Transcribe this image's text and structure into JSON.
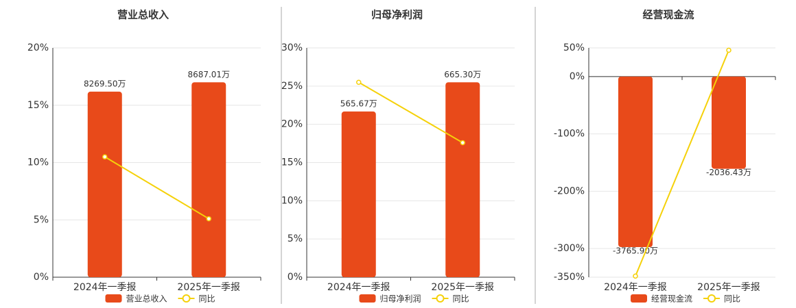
{
  "chart_data": [
    {
      "type": "bar",
      "title": "营业总收入",
      "categories": [
        "2024年一季报",
        "2025年一季报"
      ],
      "series": [
        {
          "name": "营业总收入",
          "type": "bar",
          "color": "#e84a1a",
          "values": [
            8269.5,
            8687.01
          ],
          "value_labels": [
            "8269.50万",
            "8687.01万"
          ]
        },
        {
          "name": "同比",
          "type": "line",
          "color": "#f5d10a",
          "values": [
            10.5,
            5.1
          ]
        }
      ],
      "ylim": [
        0,
        20
      ],
      "yticks": [
        {
          "value": 0,
          "label": "0%"
        },
        {
          "value": 5,
          "label": "5%"
        },
        {
          "value": 10,
          "label": "10%"
        },
        {
          "value": 15,
          "label": "15%"
        },
        {
          "value": 20,
          "label": "20%"
        }
      ],
      "grid": true
    },
    {
      "type": "bar",
      "title": "归母净利润",
      "categories": [
        "2024年一季报",
        "2025年一季报"
      ],
      "series": [
        {
          "name": "归母净利润",
          "type": "bar",
          "color": "#e84a1a",
          "values": [
            565.67,
            665.3
          ],
          "value_labels": [
            "565.67万",
            "665.30万"
          ]
        },
        {
          "name": "同比",
          "type": "line",
          "color": "#f5d10a",
          "values": [
            25.5,
            17.6
          ]
        }
      ],
      "ylim": [
        0,
        30
      ],
      "yticks": [
        {
          "value": 0,
          "label": "0%"
        },
        {
          "value": 5,
          "label": "5%"
        },
        {
          "value": 10,
          "label": "10%"
        },
        {
          "value": 15,
          "label": "15%"
        },
        {
          "value": 20,
          "label": "20%"
        },
        {
          "value": 25,
          "label": "25%"
        },
        {
          "value": 30,
          "label": "30%"
        }
      ],
      "grid": true
    },
    {
      "type": "bar",
      "title": "经营现金流",
      "categories": [
        "2024年一季报",
        "2025年一季报"
      ],
      "series": [
        {
          "name": "经营现金流",
          "type": "bar",
          "color": "#e84a1a",
          "values": [
            -3765.9,
            -2036.43
          ],
          "value_labels": [
            "-3765.90万",
            "-2036.43万"
          ]
        },
        {
          "name": "同比",
          "type": "line",
          "color": "#f5d10a",
          "values": [
            -348,
            46
          ]
        }
      ],
      "ylim": [
        -350,
        50
      ],
      "yticks": [
        {
          "value": -350,
          "label": "-350%"
        },
        {
          "value": -300,
          "label": "-300%"
        },
        {
          "value": -200,
          "label": "-200%"
        },
        {
          "value": -100,
          "label": "-100%"
        },
        {
          "value": 0,
          "label": "0%"
        },
        {
          "value": 50,
          "label": "50%"
        }
      ],
      "grid": true
    }
  ]
}
